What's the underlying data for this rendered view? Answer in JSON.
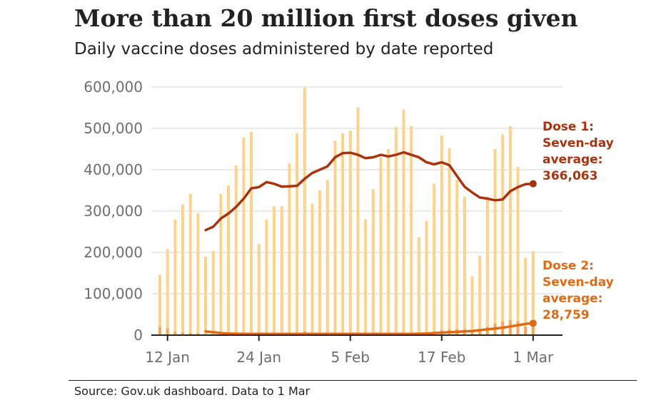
{
  "title": "More than 20 million first doses given",
  "subtitle": "Daily vaccine doses administered by date reported",
  "source": "Source: Gov.uk dashboard. Data to 1 Mar",
  "colors": {
    "dose1_bar": "#fdd28b",
    "dose2_bar": "#f0a85a",
    "dose1_line": "#a8330d",
    "dose2_line": "#e06a12",
    "grid": "#d6d6d6",
    "axis": "#222222",
    "tick_text": "#6e6e6e"
  },
  "chart_data": {
    "type": "bar",
    "title": "More than 20 million first doses given",
    "subtitle": "Daily vaccine doses administered by date reported",
    "x": [
      "2021-01-11",
      "2021-01-12",
      "2021-01-13",
      "2021-01-14",
      "2021-01-15",
      "2021-01-16",
      "2021-01-17",
      "2021-01-18",
      "2021-01-19",
      "2021-01-20",
      "2021-01-21",
      "2021-01-22",
      "2021-01-23",
      "2021-01-24",
      "2021-01-25",
      "2021-01-26",
      "2021-01-27",
      "2021-01-28",
      "2021-01-29",
      "2021-01-30",
      "2021-01-31",
      "2021-02-01",
      "2021-02-02",
      "2021-02-03",
      "2021-02-04",
      "2021-02-05",
      "2021-02-06",
      "2021-02-07",
      "2021-02-08",
      "2021-02-09",
      "2021-02-10",
      "2021-02-11",
      "2021-02-12",
      "2021-02-13",
      "2021-02-14",
      "2021-02-15",
      "2021-02-16",
      "2021-02-17",
      "2021-02-18",
      "2021-02-19",
      "2021-02-20",
      "2021-02-21",
      "2021-02-22",
      "2021-02-23",
      "2021-02-24",
      "2021-02-25",
      "2021-02-26",
      "2021-02-27",
      "2021-02-28",
      "2021-03-01"
    ],
    "x_tick_labels": [
      "12 Jan",
      "24 Jan",
      "5 Feb",
      "17 Feb",
      "1 Mar"
    ],
    "x_tick_dates": [
      "2021-01-12",
      "2021-01-24",
      "2021-02-05",
      "2021-02-17",
      "2021-03-01"
    ],
    "ylim": [
      0,
      600000
    ],
    "y_ticks": [
      0,
      100000,
      200000,
      300000,
      400000,
      500000,
      600000
    ],
    "y_tick_labels": [
      "0",
      "100,000",
      "200,000",
      "300,000",
      "400,000",
      "500,000",
      "600,000"
    ],
    "grid": true,
    "series": [
      {
        "kind": "bar",
        "color": "#fdd28b",
        "values": [
          145000,
          208000,
          280000,
          316000,
          342000,
          295000,
          190000,
          204000,
          342000,
          362000,
          410000,
          478000,
          492000,
          220000,
          280000,
          311000,
          312000,
          415000,
          488000,
          598000,
          318000,
          350000,
          375000,
          470000,
          488000,
          495000,
          550000,
          280000,
          353000,
          430000,
          450000,
          503000,
          545000,
          505000,
          237000,
          276000,
          366000,
          483000,
          452000,
          375000,
          335000,
          142000,
          192000,
          335000,
          450000,
          485000,
          505000,
          407000,
          187000,
          203000
        ]
      },
      {
        "kind": "bar",
        "color": "#f0a85a",
        "values": [
          20000,
          16000,
          9000,
          6000,
          5000,
          4000,
          3000,
          3000,
          3000,
          3000,
          3000,
          3000,
          3000,
          3000,
          3000,
          3000,
          4000,
          5000,
          6000,
          9000,
          5000,
          4000,
          4000,
          4000,
          4000,
          4000,
          5000,
          5000,
          5000,
          5000,
          5000,
          5000,
          6000,
          6000,
          6000,
          7000,
          8000,
          12000,
          14000,
          14000,
          14000,
          12000,
          15000,
          20000,
          28000,
          33000,
          36000,
          34000,
          20000,
          25000
        ]
      },
      {
        "kind": "line",
        "color": "#a8330d",
        "values": [
          null,
          null,
          null,
          null,
          null,
          null,
          254000,
          262000,
          282000,
          294000,
          310000,
          330000,
          355000,
          358000,
          370000,
          366000,
          359000,
          360000,
          361000,
          378000,
          392000,
          400000,
          408000,
          430000,
          440000,
          441000,
          436000,
          428000,
          430000,
          436000,
          432000,
          436000,
          442000,
          436000,
          430000,
          418000,
          413000,
          418000,
          411000,
          385000,
          359000,
          345000,
          333000,
          330000,
          326000,
          328000,
          348000,
          358000,
          365000,
          366063
        ]
      },
      {
        "kind": "line",
        "color": "#e06a12",
        "values": [
          null,
          null,
          null,
          null,
          null,
          null,
          9000,
          7000,
          5000,
          4000,
          3500,
          3000,
          3000,
          3000,
          3000,
          3000,
          3000,
          3000,
          3000,
          3000,
          3000,
          3000,
          3000,
          3000,
          3000,
          3000,
          3000,
          3000,
          3000,
          3000,
          3000,
          3000,
          3000,
          3000,
          3500,
          4000,
          5000,
          6000,
          7000,
          8000,
          9000,
          10000,
          12000,
          14000,
          16000,
          18000,
          21000,
          24000,
          27000,
          28759
        ]
      }
    ],
    "annotations": [
      {
        "lines": [
          "Dose 1:",
          "Seven-day",
          "average:",
          "366,063"
        ],
        "color": "#a8330d"
      },
      {
        "lines": [
          "Dose 2:",
          "Seven-day",
          "average:",
          "28,759"
        ],
        "color": "#e06a12"
      }
    ]
  }
}
